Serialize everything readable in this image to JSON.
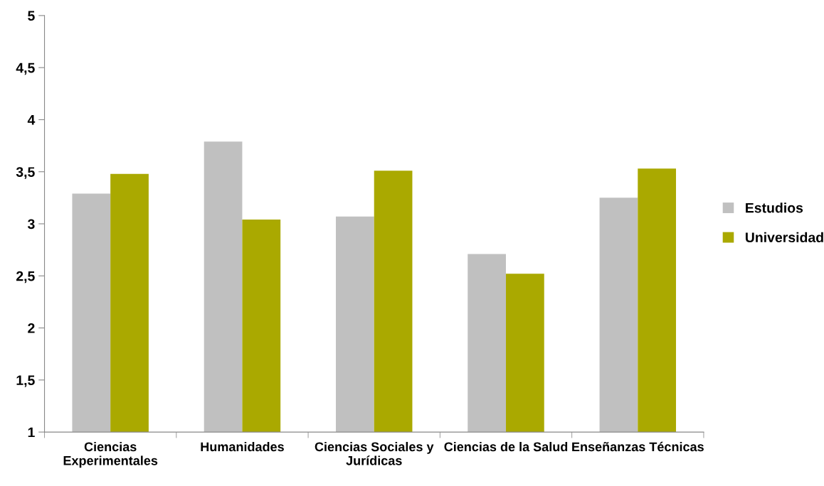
{
  "chart_data": {
    "type": "bar",
    "categories": [
      "Ciencias\nExperimentales",
      "Humanidades",
      "Ciencias Sociales y\nJurídicas",
      "Ciencias de la Salud",
      "Enseñanzas Técnicas"
    ],
    "series": [
      {
        "name": "Estudios",
        "color": "#c0c0c0",
        "values": [
          3.29,
          3.79,
          3.07,
          2.71,
          3.25
        ]
      },
      {
        "name": "Universidad",
        "color": "#aaa900",
        "values": [
          3.48,
          3.04,
          3.51,
          2.52,
          3.53
        ]
      }
    ],
    "ylim": [
      1,
      5
    ],
    "yticks": [
      1,
      {
        "value": 1.5,
        "label": "1,5"
      },
      2,
      {
        "value": 2.5,
        "label": "2,5"
      },
      3,
      {
        "value": 3.5,
        "label": "3,5"
      },
      4,
      {
        "value": 4.5,
        "label": "4,5"
      },
      5
    ],
    "grid": false,
    "legend": "right"
  }
}
